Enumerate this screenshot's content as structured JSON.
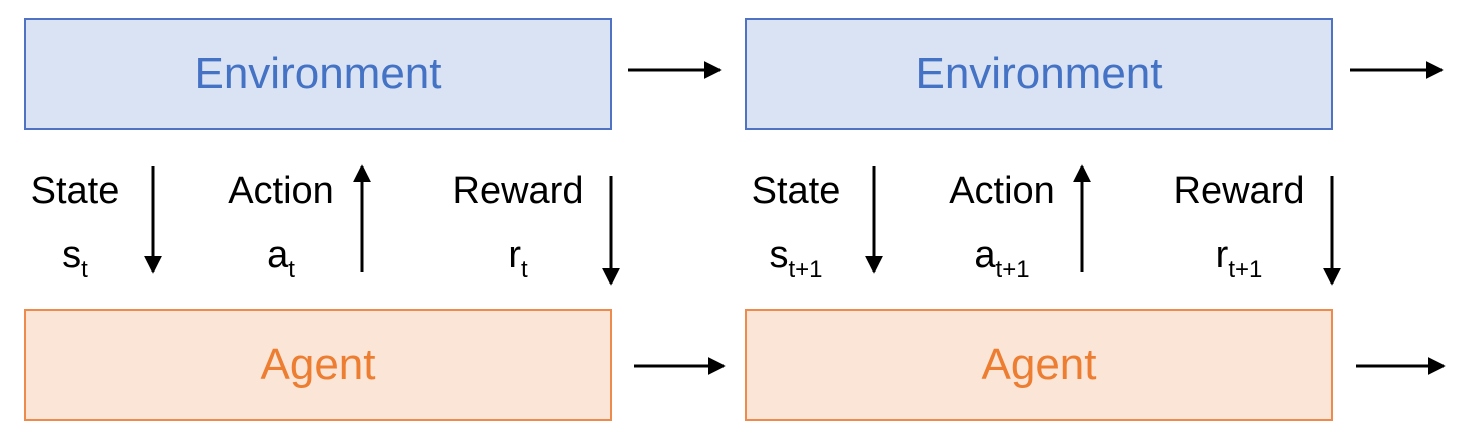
{
  "steps": [
    {
      "environment": "Environment",
      "agent": "Agent",
      "state_label": "State",
      "state_symbol": "s",
      "state_sub": "t",
      "action_label": "Action",
      "action_symbol": "a",
      "action_sub": "t",
      "reward_label": "Reward",
      "reward_symbol": "r",
      "reward_sub": "t"
    },
    {
      "environment": "Environment",
      "agent": "Agent",
      "state_label": "State",
      "state_symbol": "s",
      "state_sub": "t+1",
      "action_label": "Action",
      "action_symbol": "a",
      "action_sub": "t+1",
      "reward_label": "Reward",
      "reward_symbol": "r",
      "reward_sub": "t+1"
    }
  ],
  "colors": {
    "environment_fill": "#dae3f3",
    "environment_text": "#4472c4",
    "agent_fill": "#fbe5d6",
    "agent_text": "#ed7d31"
  }
}
